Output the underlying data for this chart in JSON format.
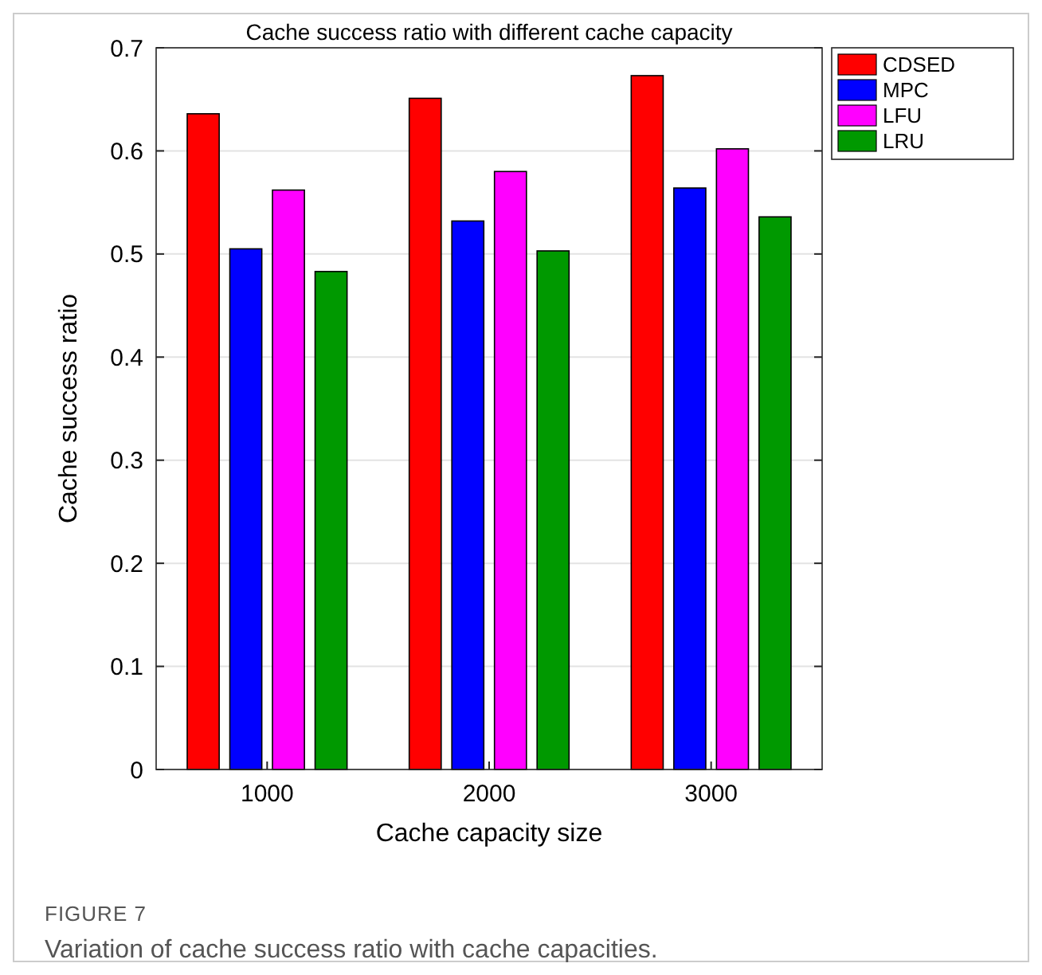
{
  "chart_data": {
    "type": "bar",
    "title": "Cache success ratio with different cache capacity",
    "xlabel": "Cache capacity size",
    "ylabel": "Cache success ratio",
    "categories": [
      "1000",
      "2000",
      "3000"
    ],
    "series": [
      {
        "name": "CDSED",
        "color": "#ff0000",
        "values": [
          0.636,
          0.651,
          0.673
        ]
      },
      {
        "name": "MPC",
        "color": "#0000ff",
        "values": [
          0.505,
          0.532,
          0.564
        ]
      },
      {
        "name": "LFU",
        "color": "#ff00ff",
        "values": [
          0.562,
          0.58,
          0.602
        ]
      },
      {
        "name": "LRU",
        "color": "#009900",
        "values": [
          0.483,
          0.503,
          0.536
        ]
      }
    ],
    "ylim": [
      0,
      0.7
    ],
    "yticks": [
      0,
      0.1,
      0.2,
      0.3,
      0.4,
      0.5,
      0.6,
      0.7
    ],
    "grid": "y",
    "legend": "top right",
    "annotations": [
      "FIGURE 7",
      "Variation of cache success ratio with cache capacities."
    ]
  }
}
